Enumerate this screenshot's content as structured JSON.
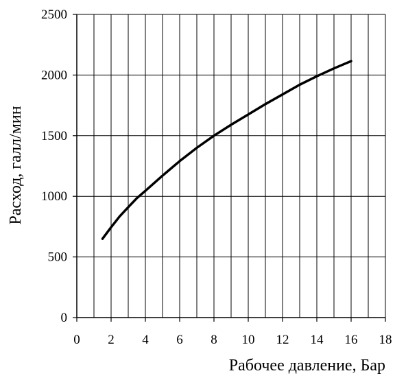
{
  "chart_data": {
    "type": "line",
    "title": "",
    "xlabel": "Рабочее давление, Бар",
    "ylabel": "Расход, галл/мин",
    "xlim": [
      0,
      18
    ],
    "ylim": [
      0,
      2500
    ],
    "x_ticks": [
      0,
      2,
      4,
      6,
      8,
      10,
      12,
      14,
      16,
      18
    ],
    "y_ticks": [
      0,
      500,
      1000,
      1500,
      2000,
      2500
    ],
    "grid": true,
    "grid_x_step": 1,
    "grid_y_step": 500,
    "legend": "none",
    "line_color": "#000000",
    "series": [
      {
        "x": [
          1.5,
          2,
          2.5,
          3,
          3.5,
          4,
          5,
          6,
          7,
          8,
          9,
          10,
          11,
          12,
          13,
          14,
          15,
          16
        ],
        "y": [
          650,
          745,
          835,
          910,
          985,
          1045,
          1170,
          1290,
          1400,
          1500,
          1590,
          1675,
          1760,
          1840,
          1920,
          1990,
          2055,
          2115
        ]
      }
    ]
  }
}
